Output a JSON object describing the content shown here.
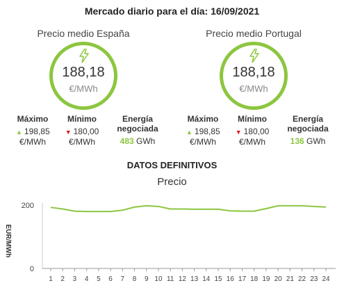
{
  "header": {
    "title": "Mercado diario para el día: 16/09/2021"
  },
  "regions": [
    {
      "title": "Precio medio España",
      "price": "188,18",
      "unit": "€/MWh",
      "max_label": "Máximo",
      "max_value": "198,85",
      "max_unit": "€/MWh",
      "min_label": "Mínimo",
      "min_value": "180,00",
      "min_unit": "€/MWh",
      "energy_label_1": "Energía",
      "energy_label_2": "negociada",
      "energy_value": "483",
      "energy_unit": "GWh"
    },
    {
      "title": "Precio medio Portugal",
      "price": "188,18",
      "unit": "€/MWh",
      "max_label": "Máximo",
      "max_value": "198,85",
      "max_unit": "€/MWh",
      "min_label": "Mínimo",
      "min_value": "180,00",
      "min_unit": "€/MWh",
      "energy_label_1": "Energía",
      "energy_label_2": "negociada",
      "energy_value": "136",
      "energy_unit": "GWh"
    }
  ],
  "section": {
    "title": "DATOS DEFINITIVOS"
  },
  "icons": {
    "price": "lightning-bolt-icon",
    "max": "triangle-up-icon",
    "min": "triangle-down-icon"
  },
  "colors": {
    "accent": "#8cc63f",
    "down": "#d7191c"
  },
  "chart_data": {
    "type": "line",
    "title": "Precio",
    "xlabel": "",
    "ylabel": "EUR/MWh",
    "categories": [
      "1",
      "2",
      "3",
      "4",
      "5",
      "6",
      "7",
      "8",
      "9",
      "10",
      "11",
      "12",
      "13",
      "14",
      "15",
      "16",
      "17",
      "18",
      "19",
      "20",
      "21",
      "22",
      "23",
      "24"
    ],
    "ylim": [
      0,
      200
    ],
    "yticks": [
      0,
      200
    ],
    "grid": false,
    "series": [
      {
        "values": [
          193,
          188,
          181,
          180,
          180,
          180,
          184,
          194,
          198,
          196,
          188,
          188,
          187,
          187,
          187,
          182,
          181,
          181,
          189,
          198,
          198,
          198,
          196,
          194
        ]
      }
    ]
  }
}
